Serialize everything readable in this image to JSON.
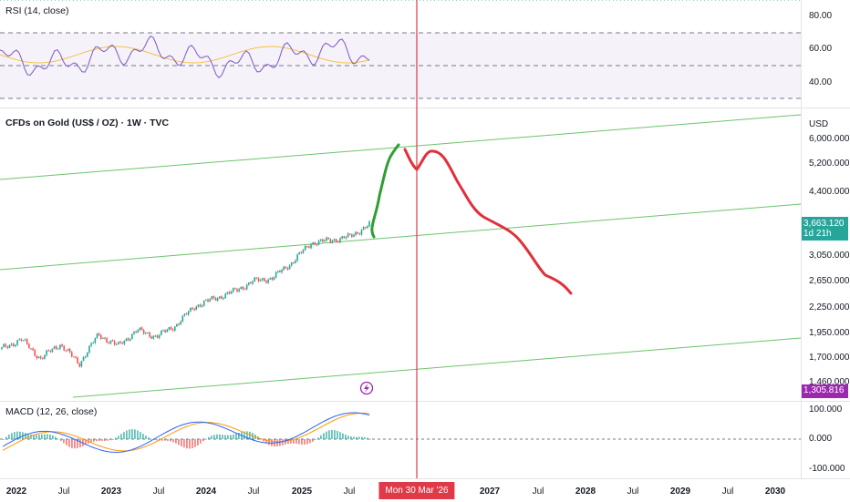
{
  "rsi": {
    "title": "RSI (14, close)",
    "axis_labels": [
      "80.00",
      "60.00",
      "40.00"
    ]
  },
  "price": {
    "title": "CFDs on Gold (US$ / OZ) · 1W · TVC",
    "currency": "USD",
    "axis_labels": [
      "6,000.000",
      "5,200.000",
      "4,400.000",
      "3,050.000",
      "2,650.000",
      "2,250.000",
      "1,950.000",
      "1,700.000",
      "1,460.000"
    ],
    "last_price": "3,663.120",
    "countdown": "1d 21h",
    "lower_tag": "1,305.816",
    "colors": {
      "up": "#26a69a",
      "down": "#ef5350",
      "drawing_up": "#2e9e34",
      "drawing_down": "#e0303a",
      "channel": "#6cc36c",
      "tag_purple": "#9c27b0"
    }
  },
  "macd": {
    "title": "MACD (12, 26, close)",
    "axis_labels": [
      "100.000",
      "0.000",
      "-100.000"
    ]
  },
  "time_axis": {
    "labels": [
      "2022",
      "Jul",
      "2023",
      "Jul",
      "2024",
      "Jul",
      "2025",
      "Jul",
      "2027",
      "Jul",
      "2028",
      "Jul",
      "2029",
      "Jul",
      "2030"
    ],
    "cursor_label": "Mon 30 Mar '26"
  },
  "chart_data": [
    {
      "type": "line",
      "title": "RSI (14, close)",
      "ylim": [
        30,
        85
      ],
      "levels": [
        70,
        50,
        30
      ]
    },
    {
      "type": "candlestick",
      "title": "CFDs on Gold (US$ / OZ) · 1W · TVC",
      "ylabel": "USD",
      "scale": "log",
      "x": [
        "2022",
        "Jul",
        "2023",
        "Jul",
        "2024",
        "Jul",
        "2025",
        "Jul"
      ],
      "approx_close": [
        1800,
        1900,
        1700,
        1850,
        1650,
        1950,
        1830,
        2000,
        1930,
        2060,
        2300,
        2400,
        2500,
        2650,
        2700,
        2950,
        3300,
        3350,
        3420,
        3663
      ],
      "last_price": 3663.12,
      "projection_up_target": 5950,
      "projection_down_path": [
        5600,
        5000,
        5500,
        4600,
        3900,
        3500,
        3000,
        2650,
        2400
      ]
    },
    {
      "type": "line",
      "title": "MACD (12, 26, close)",
      "ylim": [
        -120,
        120
      ]
    }
  ]
}
